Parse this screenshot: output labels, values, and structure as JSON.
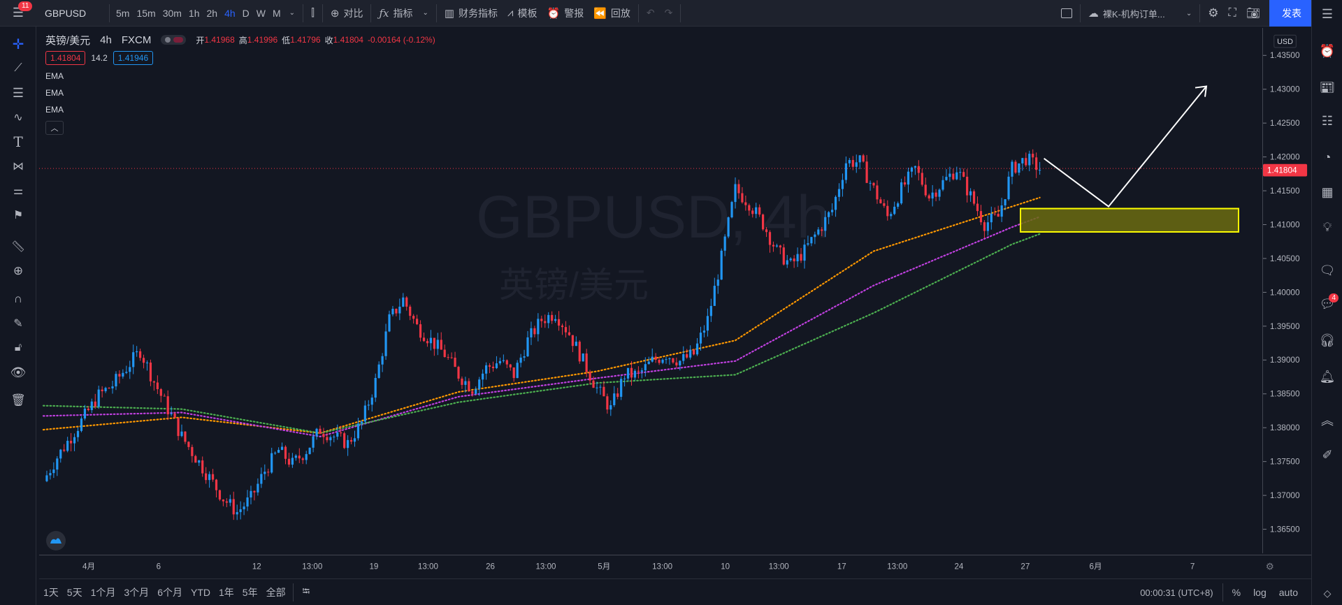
{
  "topbar": {
    "menu_badge": "11",
    "symbol": "GBPUSD",
    "intervals": [
      "5m",
      "15m",
      "30m",
      "1h",
      "2h",
      "4h",
      "D",
      "W",
      "M"
    ],
    "active_interval": "4h",
    "compare_label": "对比",
    "indicators_label": "指标",
    "financials_label": "财务指标",
    "templates_label": "模板",
    "alert_label": "警报",
    "replay_label": "回放",
    "layout_name": "裸K-机构订单...",
    "publish_label": "发表"
  },
  "legend": {
    "title": "英镑/美元",
    "interval": "4h",
    "source": "FXCM",
    "open_label": "开",
    "open": "1.41968",
    "high_label": "高",
    "high": "1.41996",
    "low_label": "低",
    "low": "1.41796",
    "close_label": "收",
    "close": "1.41804",
    "change": "-0.00164 (-0.12%)",
    "bid": "1.41804",
    "spread": "14.2",
    "ask": "1.41946",
    "indicators": [
      "EMA",
      "EMA",
      "EMA"
    ]
  },
  "watermark": {
    "symbol": "GBPUSD, 4h",
    "description": "英镑/美元"
  },
  "price_axis": {
    "currency": "USD",
    "ticks": [
      "1.43500",
      "1.43000",
      "1.42500",
      "1.42000",
      "1.41500",
      "1.41000",
      "1.40500",
      "1.40000",
      "1.39500",
      "1.39000",
      "1.38500",
      "1.38000",
      "1.37500",
      "1.37000",
      "1.36500"
    ],
    "current_price": "1.41804"
  },
  "time_axis": {
    "ticks": [
      "4月",
      "6",
      "12",
      "13:00",
      "19",
      "13:00",
      "26",
      "13:00",
      "5月",
      "13:00",
      "10",
      "13:00",
      "17",
      "13:00",
      "24",
      "27",
      "6月",
      "7"
    ]
  },
  "bottombar": {
    "ranges": [
      "1天",
      "5天",
      "1个月",
      "3个月",
      "6个月",
      "YTD",
      "1年",
      "5年",
      "全部"
    ],
    "clock": "00:00:31 (UTC+8)",
    "percent_label": "%",
    "log_label": "log",
    "auto_label": "auto"
  },
  "colors": {
    "up": "#2196f3",
    "down": "#f23645",
    "ema_fast": "#ff9800",
    "ema_mid": "#c040e0",
    "ema_slow": "#4caf50",
    "zone_fill": "#6b6b10",
    "zone_border": "#ffff00",
    "accent": "#2962ff"
  },
  "chart_data": {
    "type": "candlestick",
    "ylim": [
      1.362,
      1.4385
    ],
    "x_ticks": [
      "4月",
      "6",
      "12",
      "13:00",
      "19",
      "13:00",
      "26",
      "13:00",
      "5月",
      "13:00",
      "10",
      "13:00",
      "17",
      "13:00",
      "24",
      "27",
      "6月",
      "7"
    ],
    "path_close": [
      1.3725,
      1.376,
      1.379,
      1.382,
      1.385,
      1.3865,
      1.389,
      1.3915,
      1.387,
      1.383,
      1.379,
      1.376,
      1.373,
      1.37,
      1.368,
      1.37,
      1.374,
      1.377,
      1.375,
      1.377,
      1.38,
      1.379,
      1.378,
      1.381,
      1.387,
      1.396,
      1.399,
      1.395,
      1.393,
      1.391,
      1.388,
      1.386,
      1.389,
      1.39,
      1.388,
      1.393,
      1.396,
      1.397,
      1.394,
      1.39,
      1.386,
      1.383,
      1.388,
      1.388,
      1.39,
      1.391,
      1.39,
      1.391,
      1.396,
      1.405,
      1.415,
      1.413,
      1.41,
      1.406,
      1.404,
      1.406,
      1.409,
      1.412,
      1.419,
      1.419,
      1.415,
      1.411,
      1.415,
      1.418,
      1.414,
      1.416,
      1.418,
      1.414,
      1.41,
      1.411,
      1.418,
      1.4195,
      1.418
    ],
    "ema_fast": [
      [
        0,
        1.38
      ],
      [
        10,
        1.3818
      ],
      [
        20,
        1.3795
      ],
      [
        30,
        1.3855
      ],
      [
        40,
        1.3885
      ],
      [
        50,
        1.393
      ],
      [
        60,
        1.406
      ],
      [
        70,
        1.4125
      ],
      [
        72,
        1.4138
      ]
    ],
    "ema_mid": [
      [
        0,
        1.382
      ],
      [
        10,
        1.3825
      ],
      [
        20,
        1.379
      ],
      [
        30,
        1.3848
      ],
      [
        40,
        1.3875
      ],
      [
        50,
        1.39
      ],
      [
        60,
        1.401
      ],
      [
        70,
        1.4095
      ],
      [
        72,
        1.411
      ]
    ],
    "ema_slow": [
      [
        0,
        1.3835
      ],
      [
        10,
        1.383
      ],
      [
        20,
        1.3795
      ],
      [
        30,
        1.384
      ],
      [
        40,
        1.3868
      ],
      [
        50,
        1.388
      ],
      [
        60,
        1.397
      ],
      [
        70,
        1.407
      ],
      [
        72,
        1.4085
      ]
    ],
    "zone": {
      "y_low": 1.4088,
      "y_high": 1.4122
    },
    "projection": [
      [
        1.4195
      ],
      [
        1.4125
      ],
      [
        1.43
      ]
    ]
  }
}
